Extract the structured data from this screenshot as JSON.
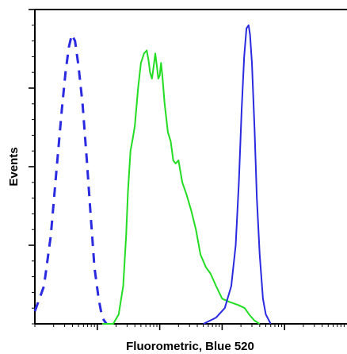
{
  "chart_data": {
    "type": "line",
    "title": "",
    "xlabel": "Fluorometric, Blue 520",
    "ylabel": "Events",
    "x_scale": "log",
    "xlim": [
      1,
      100000
    ],
    "ylim": [
      0,
      100
    ],
    "grid": false,
    "legend": "none",
    "x_ticks_major": [
      10,
      100,
      1000,
      10000
    ],
    "series": [
      {
        "color": "#2a2ae0",
        "style": "dashed",
        "points": [
          [
            1,
            4
          ],
          [
            1.4,
            12
          ],
          [
            1.8,
            28
          ],
          [
            2.2,
            48
          ],
          [
            2.7,
            68
          ],
          [
            3.1,
            80
          ],
          [
            3.5,
            88
          ],
          [
            3.9,
            92
          ],
          [
            4.4,
            90
          ],
          [
            5,
            82
          ],
          [
            5.8,
            70
          ],
          [
            6.8,
            52
          ],
          [
            7.8,
            35
          ],
          [
            9,
            18
          ],
          [
            10.5,
            8
          ],
          [
            12,
            2
          ],
          [
            14,
            0
          ]
        ]
      },
      {
        "color": "#22dd22",
        "style": "solid",
        "points": [
          [
            12,
            0
          ],
          [
            18,
            0
          ],
          [
            22,
            3
          ],
          [
            26,
            12
          ],
          [
            29,
            28
          ],
          [
            31,
            42
          ],
          [
            34,
            55
          ],
          [
            37,
            59
          ],
          [
            40,
            63
          ],
          [
            45,
            75
          ],
          [
            50,
            83
          ],
          [
            56,
            86
          ],
          [
            62,
            87
          ],
          [
            66,
            84
          ],
          [
            70,
            80
          ],
          [
            75,
            78
          ],
          [
            80,
            82
          ],
          [
            85,
            86
          ],
          [
            90,
            82
          ],
          [
            95,
            78
          ],
          [
            100,
            79
          ],
          [
            105,
            83
          ],
          [
            110,
            79
          ],
          [
            120,
            70
          ],
          [
            135,
            61
          ],
          [
            150,
            58
          ],
          [
            165,
            52
          ],
          [
            180,
            51
          ],
          [
            200,
            52
          ],
          [
            230,
            45
          ],
          [
            270,
            41
          ],
          [
            320,
            36
          ],
          [
            380,
            30
          ],
          [
            450,
            22
          ],
          [
            550,
            18
          ],
          [
            650,
            16
          ],
          [
            800,
            12
          ],
          [
            1000,
            8
          ],
          [
            1300,
            7
          ],
          [
            1800,
            6
          ],
          [
            2300,
            5
          ],
          [
            2700,
            3
          ],
          [
            3300,
            1
          ],
          [
            4000,
            0
          ]
        ]
      },
      {
        "color": "#2a2ae0",
        "style": "solid",
        "points": [
          [
            500,
            0
          ],
          [
            800,
            2
          ],
          [
            1100,
            5
          ],
          [
            1400,
            12
          ],
          [
            1650,
            25
          ],
          [
            1850,
            45
          ],
          [
            2050,
            68
          ],
          [
            2250,
            85
          ],
          [
            2450,
            94
          ],
          [
            2650,
            95
          ],
          [
            2800,
            92
          ],
          [
            3000,
            83
          ],
          [
            3300,
            62
          ],
          [
            3600,
            40
          ],
          [
            4000,
            22
          ],
          [
            4500,
            8
          ],
          [
            5000,
            3
          ],
          [
            6000,
            0
          ]
        ]
      }
    ]
  }
}
